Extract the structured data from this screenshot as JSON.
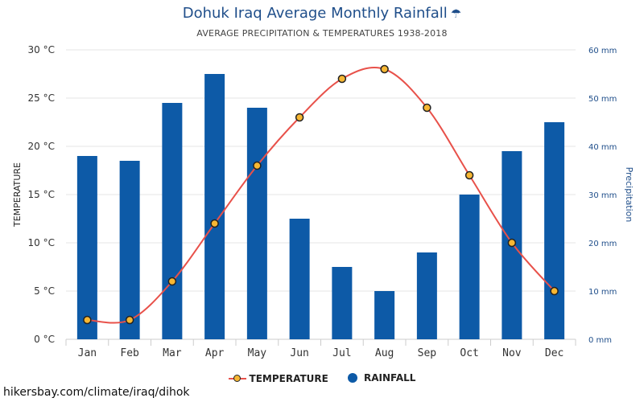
{
  "header": {
    "title": "Dohuk Iraq Average Monthly Rainfall",
    "title_icon": "☂",
    "subtitle": "AVERAGE PRECIPITATION & TEMPERATURES 1938-2018"
  },
  "legend": {
    "temperature": "TEMPERATURE",
    "rainfall": "RAINFALL"
  },
  "source": "hikersbay.com/climate/iraq/dihok",
  "colors": {
    "bar": "#0d5aa7",
    "line": "#e8514a",
    "marker": "#f7b733",
    "left_axis_text": "#333333",
    "right_axis_text": "#1f4e8a"
  },
  "chart_data": {
    "type": "bar",
    "categories": [
      "Jan",
      "Feb",
      "Mar",
      "Apr",
      "May",
      "Jun",
      "Jul",
      "Aug",
      "Sep",
      "Oct",
      "Nov",
      "Dec"
    ],
    "series": [
      {
        "name": "RAINFALL",
        "type": "bar",
        "axis": "right",
        "values": [
          38,
          37,
          49,
          55,
          48,
          25,
          15,
          10,
          18,
          30,
          39,
          45
        ]
      },
      {
        "name": "TEMPERATURE",
        "type": "line",
        "axis": "left",
        "values": [
          2,
          2,
          6,
          12,
          18,
          23,
          27,
          28,
          24,
          17,
          10,
          5
        ]
      }
    ],
    "left_axis": {
      "label": "TEMPERATURE",
      "ticks": [
        "0 °C",
        "5 °C",
        "10 °C",
        "15 °C",
        "20 °C",
        "25 °C",
        "30 °C"
      ],
      "ylim": [
        0,
        30
      ]
    },
    "right_axis": {
      "label": "Precipitation",
      "ticks": [
        "0 mm",
        "10 mm",
        "20 mm",
        "30 mm",
        "40 mm",
        "50 mm",
        "60 mm"
      ],
      "ylim": [
        0,
        60
      ]
    },
    "grid": true,
    "legend_position": "bottom"
  }
}
